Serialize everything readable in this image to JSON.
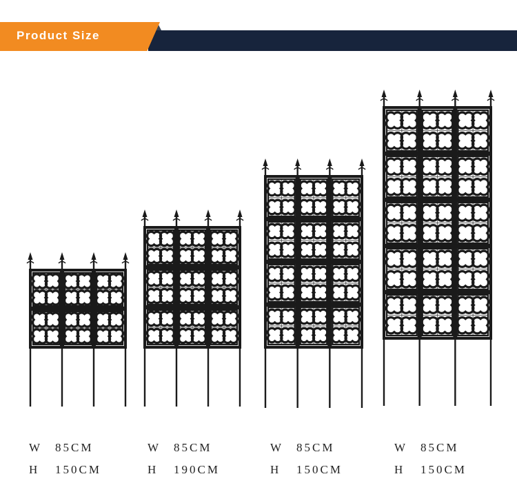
{
  "header": {
    "title": "Product Size",
    "accent_color": "#f28b21",
    "bar_color": "#17243c"
  },
  "products": [
    {
      "rows": 3,
      "width_label": "W",
      "width_value": "85CM",
      "height_label": "H",
      "height_value": "150CM"
    },
    {
      "rows": 3,
      "width_label": "W",
      "width_value": "85CM",
      "height_label": "H",
      "height_value": "190CM"
    },
    {
      "rows": 3,
      "width_label": "W",
      "width_value": "85CM",
      "height_label": "H",
      "height_value": "150CM"
    },
    {
      "rows": 3,
      "width_label": "W",
      "width_value": "85CM",
      "height_label": "H",
      "height_value": "150CM"
    }
  ]
}
